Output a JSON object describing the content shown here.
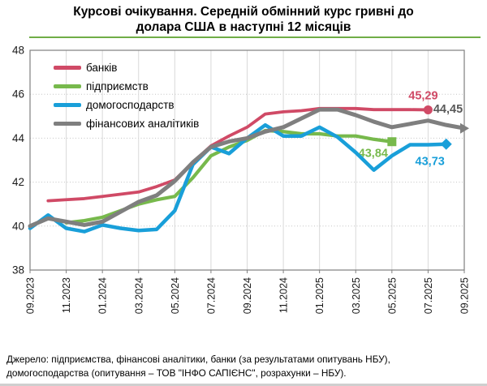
{
  "title": {
    "line1": "Курсові очікування. Середній обмінний курс гривні до",
    "line2": "долара США в наступні 12 місяців"
  },
  "source": {
    "line1": "Джерело: підприємства, фінансові аналітики, банки (за результатами опитувань НБУ),",
    "line2": "домогосподарства (опитування – ТОВ \"ІНФО САПІЄНС\", розрахунки – НБУ)."
  },
  "colors": {
    "title_underline": "#70ad47",
    "grid_vertical": "#d9d9d9",
    "grid_horizontal": "#c4c4c4",
    "axis_border": "#7f7f7f",
    "tick_label": "#1a1a1a"
  },
  "chart_data": {
    "type": "line",
    "title": "Курсові очікування. Середній обмінний курс гривні до долара США в наступні 12 місяців",
    "xlabel": "",
    "ylabel": "",
    "ylim": [
      38,
      48
    ],
    "yticks": [
      38,
      40,
      42,
      44,
      46,
      48
    ],
    "xtick_every": 2,
    "grid": true,
    "legend_position": "top-left",
    "x": [
      "09.2023",
      "10.2023",
      "11.2023",
      "12.2023",
      "01.2024",
      "02.2024",
      "03.2024",
      "04.2024",
      "05.2024",
      "06.2024",
      "07.2024",
      "08.2024",
      "09.2024",
      "10.2024",
      "11.2024",
      "12.2024",
      "01.2025",
      "02.2025",
      "03.2025",
      "04.2025",
      "05.2025",
      "06.2025",
      "07.2025",
      "08.2025",
      "09.2025"
    ],
    "series": [
      {
        "name": "банків",
        "color": "#d04a66",
        "marker": "circle",
        "end_label": "45,29",
        "label_color": "#d04a66",
        "values": [
          null,
          41.15,
          41.2,
          41.25,
          41.35,
          41.45,
          41.55,
          41.8,
          42.1,
          42.9,
          43.65,
          44.1,
          44.5,
          45.1,
          45.2,
          45.25,
          45.35,
          45.35,
          45.35,
          45.3,
          45.3,
          45.3,
          45.29,
          null,
          null
        ]
      },
      {
        "name": "підприємств",
        "color": "#77b94c",
        "marker": "square",
        "end_label": "43,84",
        "label_color": "#77b94c",
        "values": [
          null,
          null,
          40.15,
          40.25,
          40.4,
          40.7,
          41.0,
          41.2,
          41.35,
          42.2,
          43.2,
          43.6,
          43.9,
          44.35,
          44.3,
          44.2,
          44.2,
          44.1,
          44.1,
          43.95,
          43.84,
          null,
          null,
          null,
          null
        ]
      },
      {
        "name": "домогосподарств",
        "color": "#199fd9",
        "marker": "diamond",
        "end_label": "43,73",
        "label_color": "#199fd9",
        "values": [
          39.9,
          40.5,
          39.9,
          39.75,
          40.05,
          39.9,
          39.8,
          39.85,
          40.7,
          42.8,
          43.6,
          43.3,
          44.0,
          44.6,
          44.1,
          44.1,
          44.5,
          44.05,
          43.35,
          42.55,
          43.2,
          43.7,
          43.7,
          43.73,
          null
        ]
      },
      {
        "name": "фінансових аналітиків",
        "color": "#7f7f7f",
        "marker": "triangle",
        "end_label": "44,45",
        "label_color": "#595959",
        "values": [
          40.0,
          40.35,
          40.2,
          40.05,
          40.2,
          40.65,
          41.1,
          41.4,
          42.05,
          42.9,
          43.6,
          43.85,
          44.0,
          44.3,
          44.5,
          44.9,
          45.3,
          45.3,
          45.05,
          44.75,
          44.5,
          44.65,
          44.8,
          44.6,
          44.45
        ]
      }
    ]
  }
}
